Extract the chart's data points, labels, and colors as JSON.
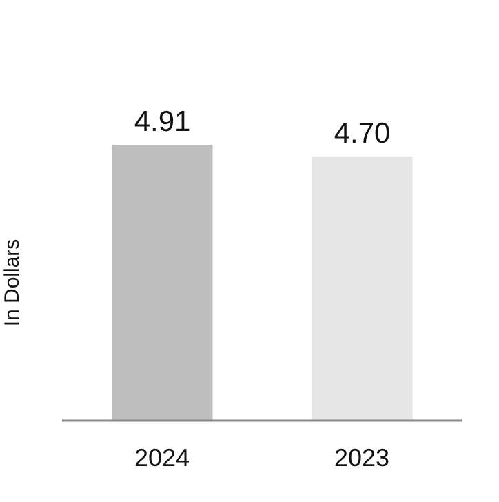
{
  "chart_data": {
    "type": "bar",
    "ylabel": "In Dollars",
    "categories": [
      "2024",
      "2023"
    ],
    "values": [
      4.91,
      4.7
    ],
    "value_labels": [
      "4.91",
      "4.70"
    ],
    "colors": [
      "#bebebe",
      "#e6e6e6"
    ],
    "tick_labels": "x"
  }
}
